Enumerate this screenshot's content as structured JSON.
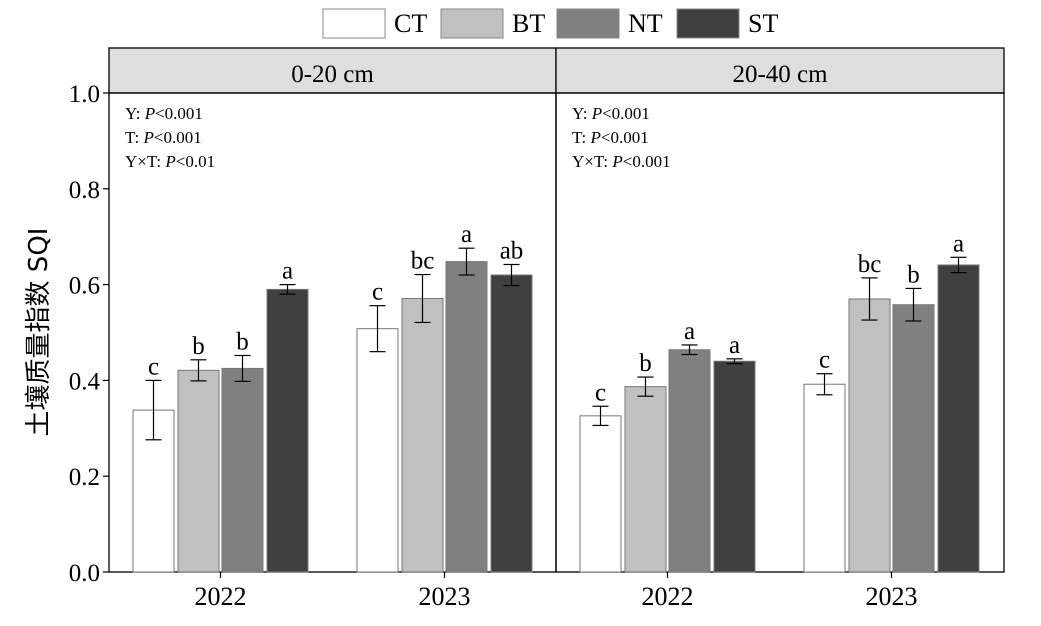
{
  "chart_data": {
    "type": "bar",
    "ylabel": "土壤质量指数 SQI",
    "ylim": [
      0,
      1.0
    ],
    "yticks": [
      "0.0",
      "0.2",
      "0.4",
      "0.6",
      "0.8",
      "1.0"
    ],
    "legend": {
      "placement": "top",
      "entries": [
        {
          "name": "CT",
          "color": "#ffffff"
        },
        {
          "name": "BT",
          "color": "#c0c0c0"
        },
        {
          "name": "NT",
          "color": "#808080"
        },
        {
          "name": "ST",
          "color": "#404040"
        }
      ]
    },
    "panels": [
      {
        "title": "0-20 cm",
        "categories": [
          "2022",
          "2023"
        ],
        "stats": [
          {
            "label": "Y: ",
            "p": "P",
            "val": "<0.001"
          },
          {
            "label": "T: ",
            "p": "P",
            "val": "<0.001"
          },
          {
            "label": "Y×T: ",
            "p": "P",
            "val": "<0.01"
          }
        ],
        "series": [
          {
            "name": "CT",
            "values": [
              0.338,
              0.508
            ],
            "errors": [
              0.062,
              0.048
            ],
            "letters": [
              "c",
              "c"
            ]
          },
          {
            "name": "BT",
            "values": [
              0.421,
              0.571
            ],
            "errors": [
              0.022,
              0.05
            ],
            "letters": [
              "b",
              "bc"
            ]
          },
          {
            "name": "NT",
            "values": [
              0.425,
              0.648
            ],
            "errors": [
              0.027,
              0.028
            ],
            "letters": [
              "b",
              "a"
            ]
          },
          {
            "name": "ST",
            "values": [
              0.59,
              0.62
            ],
            "errors": [
              0.01,
              0.022
            ],
            "letters": [
              "a",
              "ab"
            ]
          }
        ]
      },
      {
        "title": "20-40 cm",
        "categories": [
          "2022",
          "2023"
        ],
        "stats": [
          {
            "label": "Y: ",
            "p": "P",
            "val": "<0.001"
          },
          {
            "label": "T: ",
            "p": "P",
            "val": "<0.001"
          },
          {
            "label": "Y×T: ",
            "p": "P",
            "val": "<0.001"
          }
        ],
        "series": [
          {
            "name": "CT",
            "values": [
              0.326,
              0.392
            ],
            "errors": [
              0.02,
              0.022
            ],
            "letters": [
              "c",
              "c"
            ]
          },
          {
            "name": "BT",
            "values": [
              0.387,
              0.57
            ],
            "errors": [
              0.02,
              0.044
            ],
            "letters": [
              "b",
              "bc"
            ]
          },
          {
            "name": "NT",
            "values": [
              0.464,
              0.558
            ],
            "errors": [
              0.01,
              0.034
            ],
            "letters": [
              "a",
              "b"
            ]
          },
          {
            "name": "ST",
            "values": [
              0.44,
              0.641
            ],
            "errors": [
              0.005,
              0.016
            ],
            "letters": [
              "a",
              "a"
            ]
          }
        ]
      }
    ]
  }
}
